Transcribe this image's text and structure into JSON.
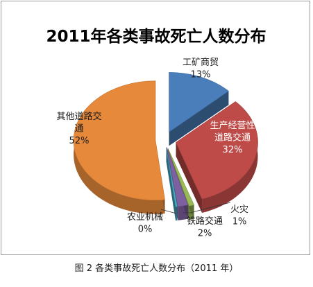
{
  "chart_data": {
    "type": "pie",
    "title": "2011年各类事故死亡人数分布",
    "slices": [
      {
        "name": "工矿商贸",
        "value": 13,
        "value_label": "13%",
        "label_lines": [
          "工矿商贸",
          "13%"
        ],
        "color": "#4A7EBB"
      },
      {
        "name": "生产经营性道路交通",
        "value": 32,
        "value_label": "32%",
        "label_lines": [
          "生产经营性",
          "道路交通",
          "32%"
        ],
        "color": "#BE4B48"
      },
      {
        "name": "火灾",
        "value": 1,
        "value_label": "1%",
        "label_lines": [
          "火灾",
          "1%"
        ],
        "color": "#98B954"
      },
      {
        "name": "铁路交通",
        "value": 2,
        "value_label": "2%",
        "label_lines": [
          "铁路交通",
          "2%"
        ],
        "color": "#7D60A0"
      },
      {
        "name": "农业机械",
        "value": 0,
        "value_label": "0%",
        "label_lines": [
          "农业机械",
          "0%"
        ],
        "color": "#46AAC5"
      },
      {
        "name": "其他道路交通",
        "value": 52,
        "value_label": "52%",
        "label_lines": [
          "其他道路交",
          "通",
          "52%"
        ],
        "color": "#E6893B"
      }
    ],
    "legend": "none",
    "style": "3d-exploded-pie"
  },
  "caption": "图 2 各类事故死亡人数分布（2011 年）"
}
